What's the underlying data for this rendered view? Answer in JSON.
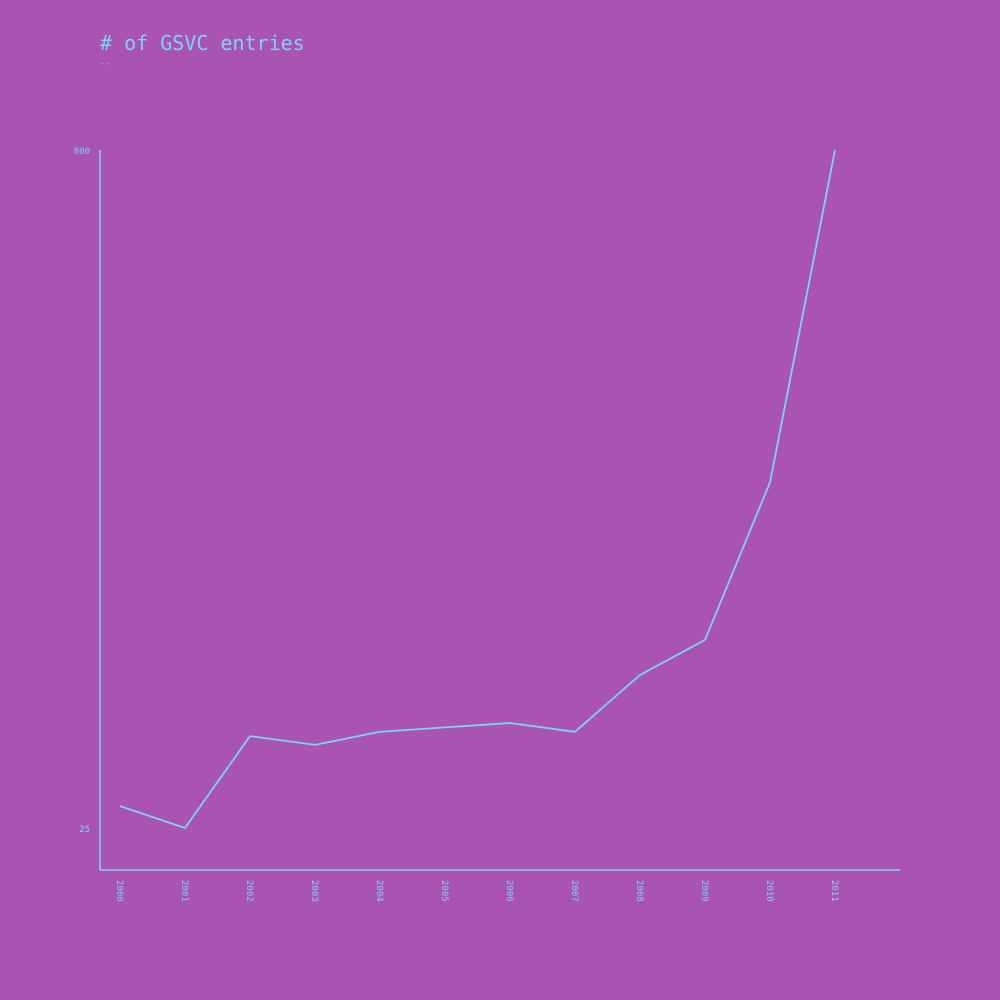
{
  "chart_data": {
    "type": "line",
    "title": "# of GSVC entries",
    "subtitle": "--",
    "x": [
      "2000",
      "2001",
      "2002",
      "2003",
      "2004",
      "2005",
      "2006",
      "2007",
      "2008",
      "2009",
      "2010",
      "2011"
    ],
    "series": [
      {
        "values": [
          50,
          25,
          130,
          120,
          135,
          140,
          145,
          135,
          200,
          240,
          420,
          800
        ]
      }
    ],
    "ylim": [
      25,
      800
    ],
    "y_tick_labels": [
      "800",
      "25"
    ],
    "grid": false,
    "legend": "none",
    "colors": {
      "background": "#a854b0",
      "line": "#7ed3f0"
    }
  }
}
